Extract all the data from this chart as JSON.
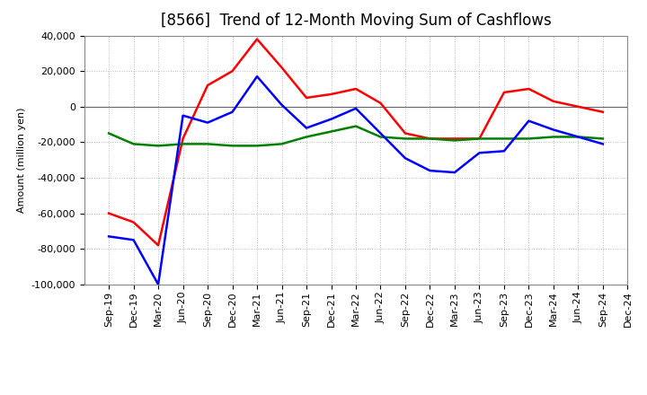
{
  "title": "[8566]  Trend of 12-Month Moving Sum of Cashflows",
  "ylabel": "Amount (million yen)",
  "xlabels": [
    "Sep-19",
    "Dec-19",
    "Mar-20",
    "Jun-20",
    "Sep-20",
    "Dec-20",
    "Mar-21",
    "Jun-21",
    "Sep-21",
    "Dec-21",
    "Mar-22",
    "Jun-22",
    "Sep-22",
    "Dec-22",
    "Mar-23",
    "Jun-23",
    "Sep-23",
    "Dec-23",
    "Mar-24",
    "Jun-24",
    "Sep-24",
    "Dec-24"
  ],
  "operating": [
    -60000,
    -65000,
    -78000,
    -18000,
    12000,
    20000,
    38000,
    22000,
    5000,
    7000,
    10000,
    2000,
    -15000,
    -18000,
    -18000,
    -18000,
    8000,
    10000,
    3000,
    0,
    -3000,
    null
  ],
  "investing": [
    -15000,
    -21000,
    -22000,
    -21000,
    -21000,
    -22000,
    -22000,
    -21000,
    -17000,
    -14000,
    -11000,
    -17000,
    -18000,
    -18000,
    -19000,
    -18000,
    -18000,
    -18000,
    -17000,
    -17000,
    -18000,
    null
  ],
  "free": [
    -73000,
    -75000,
    -100000,
    -5000,
    -9000,
    -3000,
    17000,
    1000,
    -12000,
    -7000,
    -1000,
    -15000,
    -29000,
    -36000,
    -37000,
    -26000,
    -25000,
    -8000,
    -13000,
    -17000,
    -21000,
    null
  ],
  "ylim": [
    -100000,
    40000
  ],
  "yticks": [
    -100000,
    -80000,
    -60000,
    -40000,
    -20000,
    0,
    20000,
    40000
  ],
  "operating_color": "#ff0000",
  "investing_color": "#008000",
  "free_color": "#0000ff",
  "bg_color": "#ffffff",
  "plot_bg_color": "#ffffff",
  "grid_color": "#bbbbbb",
  "title_fontsize": 12,
  "legend_fontsize": 9,
  "axis_fontsize": 8,
  "linewidth": 1.8
}
